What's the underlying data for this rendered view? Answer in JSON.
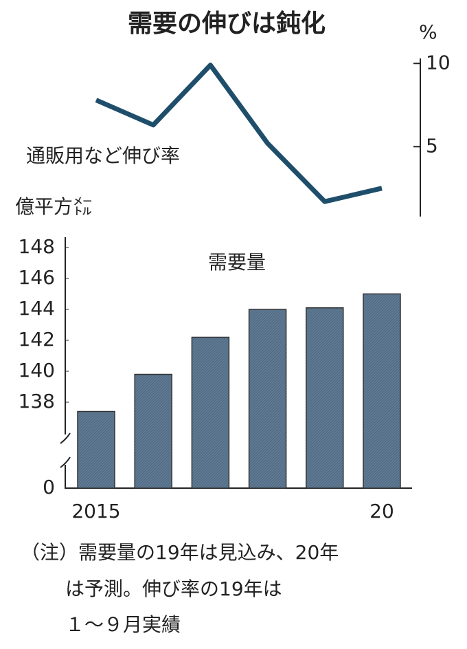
{
  "chart_data": [
    {
      "type": "line",
      "title": "需要の伸びは鈍化",
      "label": "通販用など伸び率",
      "unit": "%",
      "values": [
        7.8,
        6.3,
        9.9,
        5.2,
        1.7,
        2.5
      ],
      "color": "#1f4e6b",
      "ylim": [
        0.8,
        10.3
      ],
      "yticks": [
        5,
        10
      ],
      "axis_side": "right"
    },
    {
      "type": "bar",
      "title": "需要量",
      "unit": "億平方㍍",
      "categories": [
        "2015",
        null,
        null,
        null,
        null,
        "20"
      ],
      "values": [
        137.4,
        139.8,
        142.2,
        144.0,
        144.1,
        145.0
      ],
      "color": "#5f7a94",
      "ylim": [
        0,
        148
      ],
      "yticks": [
        0,
        138,
        140,
        142,
        144,
        146,
        148
      ],
      "axis_break": true
    }
  ],
  "note": [
    "（注）需要量の19年は見込み、20年",
    "は予測。伸び率の19年は",
    "１～９月実績"
  ]
}
